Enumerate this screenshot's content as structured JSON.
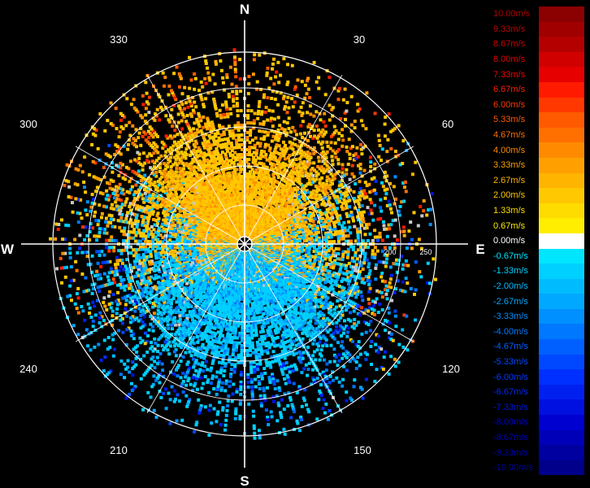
{
  "compass": {
    "north": "N",
    "south": "S",
    "east": "E",
    "west": "W"
  },
  "azimuth_labels": [
    "30",
    "60",
    "120",
    "150",
    "210",
    "240",
    "300",
    "330"
  ],
  "range_labels": [
    "200",
    "250"
  ],
  "legend": [
    {
      "label": "10.00m/s",
      "color": "#8b0000",
      "text_color": "#b00000"
    },
    {
      "label": "9.33m/s",
      "color": "#a00000",
      "text_color": "#c00000"
    },
    {
      "label": "8.67m/s",
      "color": "#b50000",
      "text_color": "#d00000"
    },
    {
      "label": "8.00m/s",
      "color": "#d00000",
      "text_color": "#e00000"
    },
    {
      "label": "7.33m/s",
      "color": "#e60000",
      "text_color": "#f00000"
    },
    {
      "label": "6.67m/s",
      "color": "#ff1a00",
      "text_color": "#ff2000"
    },
    {
      "label": "6.00m/s",
      "color": "#ff3800",
      "text_color": "#ff3a00"
    },
    {
      "label": "5.33m/s",
      "color": "#ff5a00",
      "text_color": "#ff5a00"
    },
    {
      "label": "4.67m/s",
      "color": "#ff7000",
      "text_color": "#ff7000"
    },
    {
      "label": "4.00m/s",
      "color": "#ff8a00",
      "text_color": "#ff8a00"
    },
    {
      "label": "3.33m/s",
      "color": "#ffa000",
      "text_color": "#ffa000"
    },
    {
      "label": "2.67m/s",
      "color": "#ffb400",
      "text_color": "#ffb400"
    },
    {
      "label": "2.00m/s",
      "color": "#ffc800",
      "text_color": "#ffc800"
    },
    {
      "label": "1.33m/s",
      "color": "#ffdc00",
      "text_color": "#ffdc00"
    },
    {
      "label": "0.67m/s",
      "color": "#ffee00",
      "text_color": "#ffee00"
    },
    {
      "label": "0.00m/s",
      "color": "#ffffff",
      "text_color": "#ffffff"
    },
    {
      "label": "-0.67m/s",
      "color": "#00e6ff",
      "text_color": "#00e6ff"
    },
    {
      "label": "-1.33m/s",
      "color": "#00d0ff",
      "text_color": "#00d0ff"
    },
    {
      "label": "-2.00m/s",
      "color": "#00bcff",
      "text_color": "#00bcff"
    },
    {
      "label": "-2.67m/s",
      "color": "#00a8ff",
      "text_color": "#00a8ff"
    },
    {
      "label": "-3.33m/s",
      "color": "#0090ff",
      "text_color": "#0090ff"
    },
    {
      "label": "-4.00m/s",
      "color": "#0078ff",
      "text_color": "#0078ff"
    },
    {
      "label": "-4.67m/s",
      "color": "#0060ff",
      "text_color": "#0060ff"
    },
    {
      "label": "-5.33m/s",
      "color": "#0048ff",
      "text_color": "#0048ff"
    },
    {
      "label": "-6.00m/s",
      "color": "#0030ff",
      "text_color": "#0038ff"
    },
    {
      "label": "-6.67m/s",
      "color": "#0020f0",
      "text_color": "#0028f0"
    },
    {
      "label": "-7.33m/s",
      "color": "#0010e0",
      "text_color": "#0018e0"
    },
    {
      "label": "-8.00m/s",
      "color": "#0000d0",
      "text_color": "#0000d0"
    },
    {
      "label": "-8.67m/s",
      "color": "#0000b8",
      "text_color": "#0000c0"
    },
    {
      "label": "-9.33m/s",
      "color": "#0000a0",
      "text_color": "#0000b0"
    },
    {
      "label": "-10.00m/s",
      "color": "#00008a",
      "text_color": "#0000a0"
    }
  ],
  "colors": {
    "background": "#000000",
    "grid": "#ffffff",
    "approach": "#00b8e6",
    "recede": "#e6b800",
    "zero": "#c8c8c8"
  }
}
